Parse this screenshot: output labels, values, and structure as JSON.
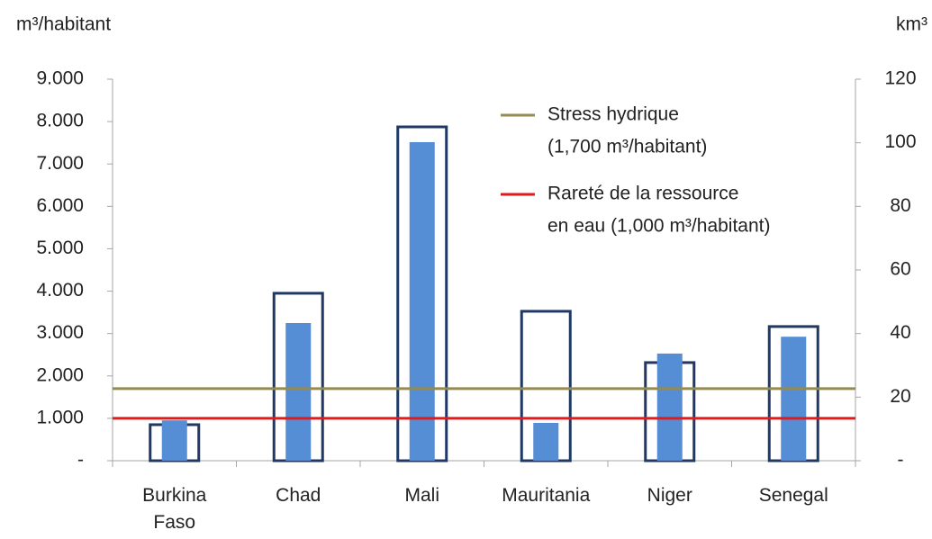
{
  "chart_data": {
    "type": "bar",
    "ylabel": "m³/habitant",
    "y2label": "km³",
    "categories": [
      "Burkina Faso",
      "Chad",
      "Mali",
      "Mauritania",
      "Niger",
      "Senegal"
    ],
    "series": [
      {
        "style": "outline",
        "color": "#1f3864",
        "values": [
          850,
          3950,
          7875,
          3525,
          2315,
          3165
        ]
      },
      {
        "style": "filled",
        "color": "#558ed5",
        "axis": "y2",
        "values": [
          12.7,
          43.3,
          100.2,
          11.9,
          33.7,
          39
        ]
      }
    ],
    "ylim": [
      0,
      9000
    ],
    "yticks": [
      {
        "value": 0,
        "label": "-"
      },
      {
        "value": 1000,
        "label": "1.000"
      },
      {
        "value": 2000,
        "label": "2.000"
      },
      {
        "value": 3000,
        "label": "3.000"
      },
      {
        "value": 4000,
        "label": "4.000"
      },
      {
        "value": 5000,
        "label": "5.000"
      },
      {
        "value": 6000,
        "label": "6.000"
      },
      {
        "value": 7000,
        "label": "7.000"
      },
      {
        "value": 8000,
        "label": "8.000"
      },
      {
        "value": 9000,
        "label": "9.000"
      }
    ],
    "y2lim": [
      0,
      120
    ],
    "y2ticks": [
      {
        "value": 0,
        "label": "-"
      },
      20,
      40,
      60,
      80,
      100,
      120
    ],
    "hlines": [
      {
        "label_lines": [
          "Stress hydrique",
          "(1,700 m³/habitant)"
        ],
        "value": 1700,
        "color": "#948a54"
      },
      {
        "label_lines": [
          "Rareté de la ressource",
          "en eau (1,000 m³/habitant)"
        ],
        "value": 1000,
        "color": "#e31a1c"
      }
    ]
  }
}
